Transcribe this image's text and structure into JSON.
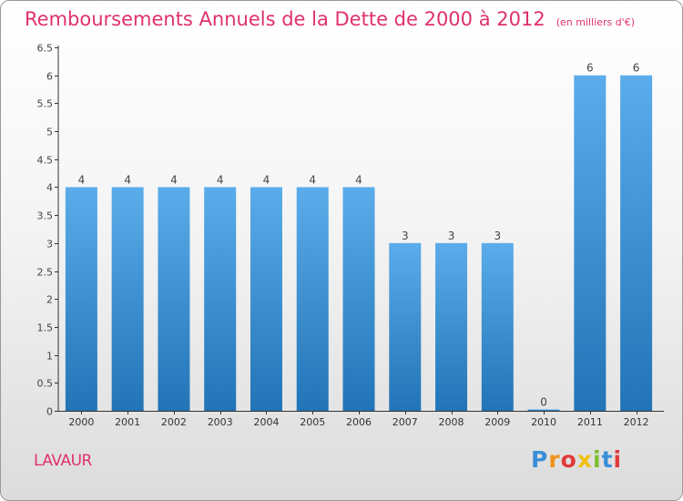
{
  "header": {
    "title": "Remboursements Annuels de la Dette de 2000 à 2012",
    "subtitle": "(en milliers d'€)"
  },
  "footer": {
    "city": "LAVAUR",
    "logo_text": "Proxiti",
    "logo_colors": [
      "#3a8ed8",
      "#f0931a",
      "#e23a3a",
      "#f0c010",
      "#7cbf2e",
      "#3a8ed8",
      "#e23a3a"
    ]
  },
  "colors": {
    "bar_light": "#5aacea",
    "bar_dark": "#2174b6",
    "title": "#e0306f",
    "axis": "#333333"
  },
  "chart_data": {
    "type": "bar",
    "categories": [
      "2000",
      "2001",
      "2002",
      "2003",
      "2004",
      "2005",
      "2006",
      "2007",
      "2008",
      "2009",
      "2010",
      "2011",
      "2012"
    ],
    "values": [
      4,
      4,
      4,
      4,
      4,
      4,
      4,
      3,
      3,
      3,
      0,
      6,
      6
    ],
    "data_labels": [
      "4",
      "4",
      "4",
      "4",
      "4",
      "4",
      "4",
      "3",
      "3",
      "3",
      "0",
      "6",
      "6"
    ],
    "ylim": [
      0,
      6.5
    ],
    "yticks": [
      0,
      0.5,
      1,
      1.5,
      2,
      2.5,
      3,
      3.5,
      4,
      4.5,
      5,
      5.5,
      6,
      6.5
    ],
    "ytick_labels": [
      "0",
      "0.5",
      "1",
      "1.5",
      "2",
      "2.5",
      "3",
      "3.5",
      "4",
      "4.5",
      "5",
      "5.5",
      "6",
      "6.5"
    ],
    "title": "Remboursements Annuels de la Dette de 2000 à 2012",
    "xlabel": "",
    "ylabel": "",
    "grid": false
  }
}
